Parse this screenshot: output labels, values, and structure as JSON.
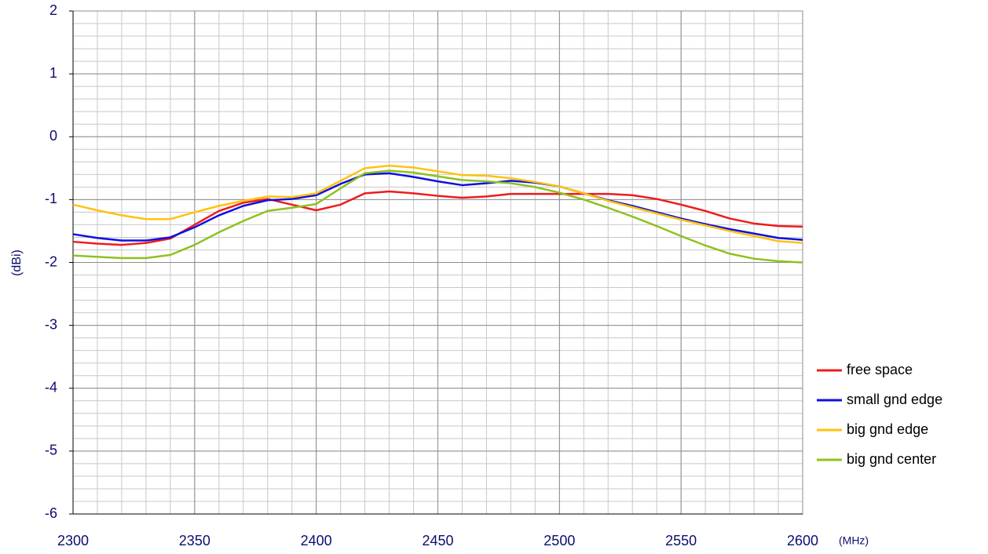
{
  "chart_data": {
    "type": "line",
    "x_label": "(MHz)",
    "y_label": "(dBi)",
    "x": [
      2300,
      2310,
      2320,
      2330,
      2340,
      2350,
      2360,
      2370,
      2380,
      2390,
      2400,
      2410,
      2420,
      2430,
      2440,
      2450,
      2460,
      2470,
      2480,
      2490,
      2500,
      2510,
      2520,
      2530,
      2540,
      2550,
      2560,
      2570,
      2580,
      2590,
      2600
    ],
    "series": [
      {
        "name": "free space",
        "color": "#ee1c1c",
        "values": [
          -1.67,
          -1.7,
          -1.72,
          -1.69,
          -1.62,
          -1.4,
          -1.18,
          -1.05,
          -0.99,
          -1.08,
          -1.17,
          -1.08,
          -0.9,
          -0.87,
          -0.9,
          -0.94,
          -0.97,
          -0.95,
          -0.91,
          -0.91,
          -0.91,
          -0.91,
          -0.91,
          -0.93,
          -0.99,
          -1.08,
          -1.18,
          -1.3,
          -1.38,
          -1.42,
          -1.43
        ]
      },
      {
        "name": "small gnd edge",
        "color": "#1010e0",
        "values": [
          -1.55,
          -1.61,
          -1.65,
          -1.65,
          -1.6,
          -1.44,
          -1.25,
          -1.1,
          -1.01,
          -0.99,
          -0.93,
          -0.75,
          -0.6,
          -0.58,
          -0.64,
          -0.71,
          -0.77,
          -0.74,
          -0.7,
          -0.73,
          -0.79,
          -0.9,
          -1.01,
          -1.1,
          -1.2,
          -1.3,
          -1.39,
          -1.47,
          -1.54,
          -1.61,
          -1.64
        ]
      },
      {
        "name": "big gnd edge",
        "color": "#ffc20e",
        "values": [
          -1.08,
          -1.17,
          -1.25,
          -1.31,
          -1.31,
          -1.2,
          -1.1,
          -1.02,
          -0.95,
          -0.96,
          -0.9,
          -0.7,
          -0.5,
          -0.46,
          -0.49,
          -0.55,
          -0.61,
          -0.62,
          -0.66,
          -0.72,
          -0.79,
          -0.9,
          -1.02,
          -1.12,
          -1.22,
          -1.32,
          -1.41,
          -1.5,
          -1.58,
          -1.66,
          -1.69
        ]
      },
      {
        "name": "big gnd center",
        "color": "#8dc21f",
        "values": [
          -1.89,
          -1.91,
          -1.93,
          -1.93,
          -1.88,
          -1.72,
          -1.52,
          -1.34,
          -1.18,
          -1.13,
          -1.07,
          -0.82,
          -0.58,
          -0.54,
          -0.57,
          -0.63,
          -0.69,
          -0.71,
          -0.74,
          -0.8,
          -0.89,
          -1.0,
          -1.13,
          -1.27,
          -1.42,
          -1.58,
          -1.73,
          -1.86,
          -1.94,
          -1.98,
          -2.0
        ]
      }
    ],
    "xlim": [
      2300,
      2600
    ],
    "xticks": [
      2300,
      2350,
      2400,
      2450,
      2500,
      2550,
      2600
    ],
    "ylim": [
      -6,
      2
    ],
    "yticks": [
      -6,
      -5,
      -4,
      -3,
      -2,
      -1,
      0,
      1,
      2
    ],
    "x_minor_step": 10,
    "y_minor_step": 0.2,
    "grid": true,
    "legend": "right"
  }
}
